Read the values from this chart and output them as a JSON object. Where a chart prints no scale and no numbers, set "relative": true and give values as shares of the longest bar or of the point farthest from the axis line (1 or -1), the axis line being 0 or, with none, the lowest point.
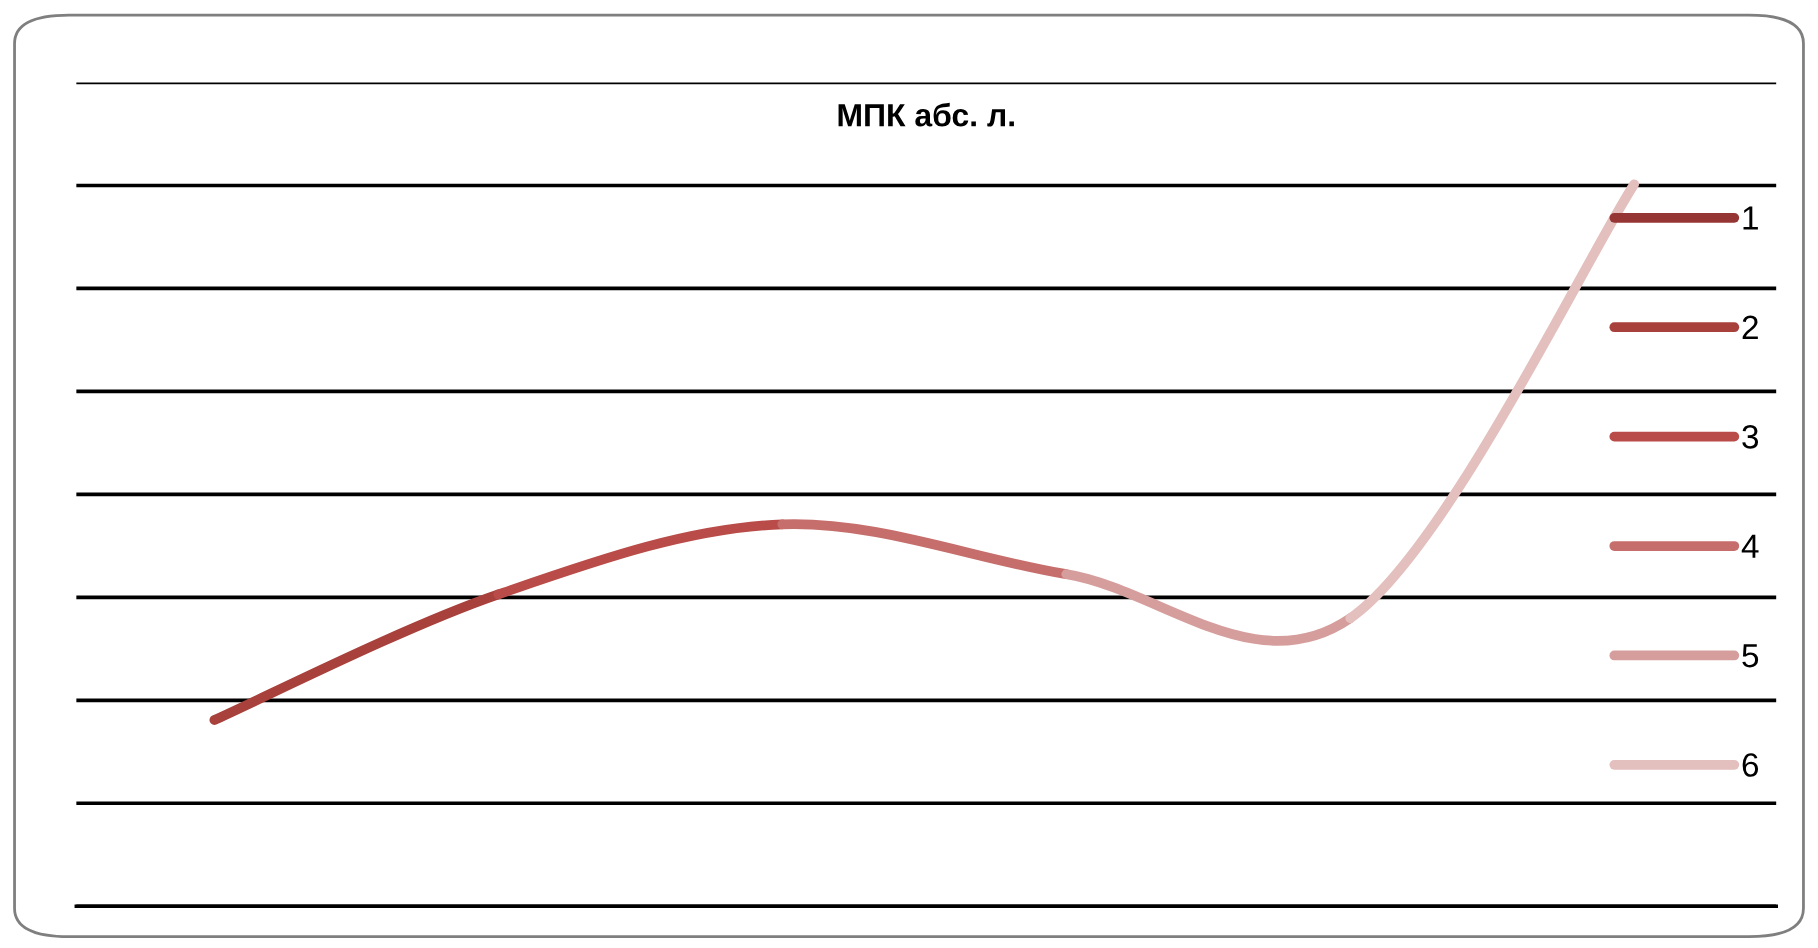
{
  "chart_data": {
    "type": "line",
    "title": "МПК абс. л.",
    "relative": true,
    "categories": [
      null,
      null,
      null,
      null,
      null,
      null
    ],
    "series": [
      {
        "name": "1",
        "color": "#963634",
        "values": [
          null,
          null,
          null,
          null,
          null,
          null
        ]
      },
      {
        "name": "2",
        "color": "#a8403c",
        "values": [
          0.258,
          0.432,
          null,
          null,
          null,
          null
        ]
      },
      {
        "name": "3",
        "color": "#b94c48",
        "values": [
          null,
          0.432,
          0.529,
          null,
          null,
          null
        ]
      },
      {
        "name": "4",
        "color": "#c66e6b",
        "values": [
          null,
          null,
          0.529,
          0.46,
          null,
          null
        ]
      },
      {
        "name": "5",
        "color": "#d59e9c",
        "values": [
          null,
          null,
          null,
          0.46,
          0.399,
          null
        ]
      },
      {
        "name": "6",
        "color": "#e3bfbd",
        "values": [
          null,
          null,
          null,
          null,
          0.399,
          1
        ]
      }
    ],
    "grid": "y",
    "legend": "right",
    "marker": "none",
    "line_style": "solid"
  }
}
